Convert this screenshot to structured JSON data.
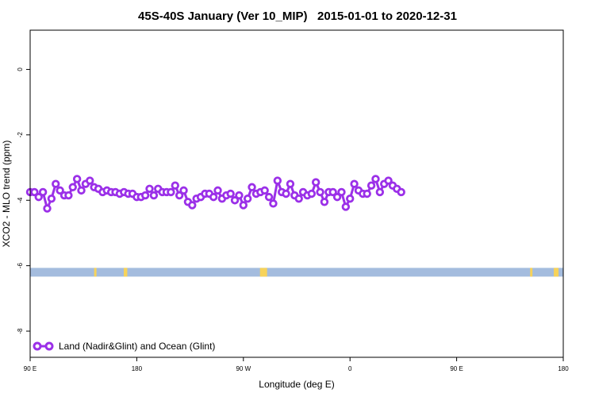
{
  "chart_data": {
    "type": "line",
    "title": "45S-40S January (Ver 10_MIP)   2015-01-01 to 2020-12-31",
    "xlabel": "Longitude (deg E)",
    "ylabel": "XCO2 - MLO trend (ppm)",
    "x_axis": {
      "range": [
        90,
        450
      ],
      "ticks": [
        90,
        180,
        270,
        360,
        450,
        540
      ],
      "tick_labels": [
        "90 E",
        "180",
        "90 W",
        "0",
        "90 E",
        "180"
      ]
    },
    "y_axis": {
      "range": [
        -8.8,
        1.2
      ],
      "ticks": [
        0,
        -2,
        -4,
        -6,
        -8
      ],
      "tick_labels": [
        "0",
        "-2",
        "-4",
        "-6",
        "-8"
      ]
    },
    "legend": {
      "position": "bottom-left",
      "entries": [
        "Land (Nadir&Glint) and Ocean (Glint)"
      ]
    },
    "series": [
      {
        "name": "Land (Nadir&Glint) and Ocean (Glint)",
        "color": "#9b30e8",
        "x_step": 3.6,
        "values": [
          -3.75,
          -3.75,
          -3.9,
          -3.75,
          -4.25,
          -3.95,
          -3.5,
          -3.7,
          -3.85,
          -3.85,
          -3.6,
          -3.35,
          -3.7,
          -3.5,
          -3.4,
          -3.6,
          -3.65,
          -3.75,
          -3.7,
          -3.75,
          -3.75,
          -3.8,
          -3.75,
          -3.8,
          -3.8,
          -3.9,
          -3.9,
          -3.85,
          -3.65,
          -3.85,
          -3.65,
          -3.75,
          -3.75,
          -3.75,
          -3.55,
          -3.85,
          -3.7,
          -4.05,
          -4.15,
          -3.95,
          -3.9,
          -3.8,
          -3.8,
          -3.9,
          -3.7,
          -3.95,
          -3.85,
          -3.8,
          -4.0,
          -3.85,
          -4.15,
          -3.95,
          -3.6,
          -3.8,
          -3.75,
          -3.7,
          -3.9,
          -4.1,
          -3.4,
          -3.75,
          -3.8,
          -3.5,
          -3.85,
          -3.95,
          -3.75,
          -3.85,
          -3.8,
          -3.45,
          -3.75,
          -4.05,
          -3.75,
          -3.75,
          -3.9,
          -3.75,
          -4.2,
          -3.95,
          -3.5,
          -3.7,
          -3.8,
          -3.8,
          -3.55,
          -3.35,
          -3.75,
          -3.5,
          -3.4,
          -3.55,
          -3.65,
          -3.75
        ]
      }
    ],
    "land_ocean_strip": {
      "y": -6.2,
      "ocean_color": "#a4bcde",
      "land_color": "#f7d35a",
      "land_x_ranges": [
        [
          144,
          146
        ],
        [
          169,
          172
        ],
        [
          284,
          290
        ],
        [
          512,
          514
        ],
        [
          532,
          536
        ]
      ]
    },
    "grid": false
  }
}
